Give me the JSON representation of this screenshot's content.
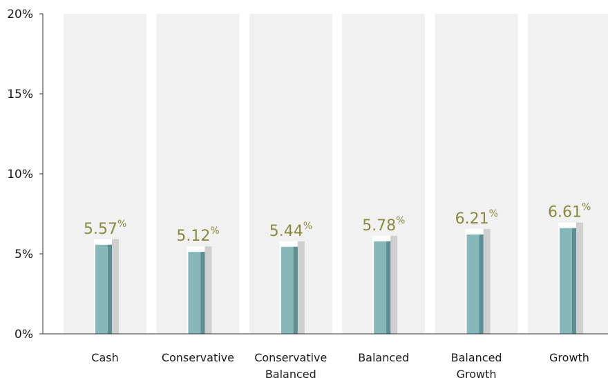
{
  "chart_data": {
    "type": "bar",
    "categories": [
      [
        "Cash"
      ],
      [
        "Conservative"
      ],
      [
        "Conservative",
        "Balanced"
      ],
      [
        "Balanced"
      ],
      [
        "Balanced",
        "Growth"
      ],
      [
        "Growth"
      ]
    ],
    "values": [
      5.57,
      5.12,
      5.44,
      5.78,
      6.21,
      6.61
    ],
    "value_labels": [
      "5.57",
      "5.12",
      "5.44",
      "5.78",
      "6.21",
      "6.61"
    ],
    "value_unit": "%",
    "yticks": [
      "0%",
      "5%",
      "10%",
      "15%",
      "20%"
    ],
    "ylim": [
      0,
      20
    ],
    "grid": false,
    "colors": {
      "bar_front": "#86b8ba",
      "bar_side": "#5f8e90",
      "shadow_light": "#ffffff",
      "shadow_dark": "#cfcfcf",
      "column_bg": "#f0f1f0",
      "value_text": "#8a8a3c",
      "axis": "#333333"
    }
  }
}
